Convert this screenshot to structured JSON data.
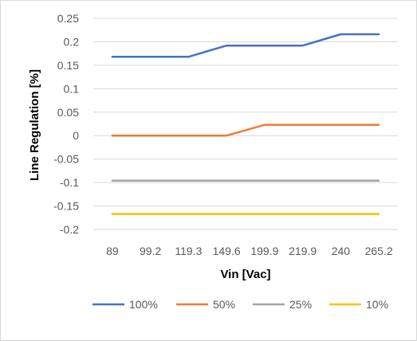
{
  "chart_data": {
    "type": "line",
    "xlabel": "Vin [Vac]",
    "ylabel": "Line Regulation [%]",
    "categories": [
      "89",
      "99.2",
      "119.3",
      "149.6",
      "199.9",
      "219.9",
      "240",
      "265.2"
    ],
    "ylim": [
      -0.2,
      0.25
    ],
    "yticks": [
      "0.25",
      "0.2",
      "0.15",
      "0.1",
      "0.05",
      "0",
      "-0.05",
      "-0.1",
      "-0.15",
      "-0.2"
    ],
    "ytick_values": [
      0.25,
      0.2,
      0.15,
      0.1,
      0.05,
      0,
      -0.05,
      -0.1,
      -0.15,
      -0.2
    ],
    "grid": true,
    "legend_position": "bottom",
    "series": [
      {
        "name": "100%",
        "color": "#4472C4",
        "values": [
          0.168,
          0.168,
          0.168,
          0.192,
          0.192,
          0.192,
          0.216,
          0.216
        ]
      },
      {
        "name": "50%",
        "color": "#ED7D31",
        "values": [
          0.0,
          0.0,
          0.0,
          0.0,
          0.023,
          0.023,
          0.023,
          0.023
        ]
      },
      {
        "name": "25%",
        "color": "#A5A5A5",
        "values": [
          -0.096,
          -0.096,
          -0.096,
          -0.096,
          -0.096,
          -0.096,
          -0.096,
          -0.096
        ]
      },
      {
        "name": "10%",
        "color": "#FFC000",
        "values": [
          -0.167,
          -0.167,
          -0.167,
          -0.167,
          -0.167,
          -0.167,
          -0.167,
          -0.167
        ]
      }
    ]
  }
}
